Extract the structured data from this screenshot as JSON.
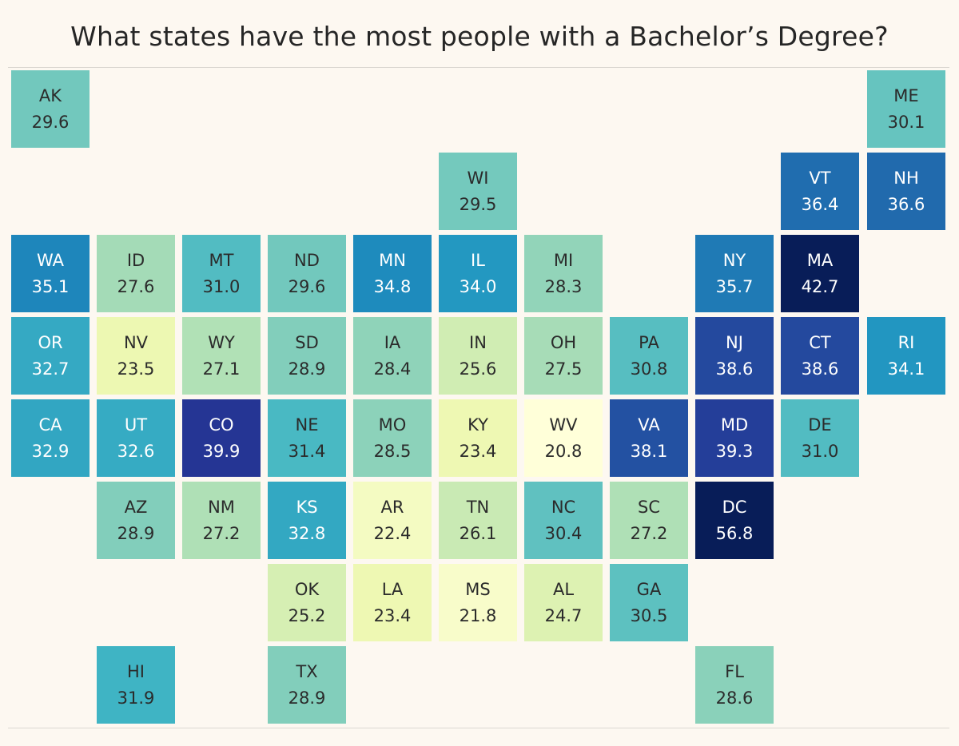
{
  "chart_data": {
    "type": "heatmap",
    "title": "What states have the most people with a Bachelor’s Degree?",
    "color_scale": [
      "#ffffd9",
      "#edf8b1",
      "#c7e9b4",
      "#7fcdbb",
      "#41b6c4",
      "#1d91c0",
      "#225ea8",
      "#253494",
      "#081d58"
    ],
    "value_range": [
      20.8,
      56.8
    ],
    "tiles": [
      {
        "state": "AK",
        "value": "29.6",
        "row": 0,
        "col": 0
      },
      {
        "state": "ME",
        "value": "30.1",
        "row": 0,
        "col": 10
      },
      {
        "state": "WI",
        "value": "29.5",
        "row": 1,
        "col": 5
      },
      {
        "state": "VT",
        "value": "36.4",
        "row": 1,
        "col": 9
      },
      {
        "state": "NH",
        "value": "36.6",
        "row": 1,
        "col": 10
      },
      {
        "state": "WA",
        "value": "35.1",
        "row": 2,
        "col": 0
      },
      {
        "state": "ID",
        "value": "27.6",
        "row": 2,
        "col": 1
      },
      {
        "state": "MT",
        "value": "31.0",
        "row": 2,
        "col": 2
      },
      {
        "state": "ND",
        "value": "29.6",
        "row": 2,
        "col": 3
      },
      {
        "state": "MN",
        "value": "34.8",
        "row": 2,
        "col": 4
      },
      {
        "state": "IL",
        "value": "34.0",
        "row": 2,
        "col": 5
      },
      {
        "state": "MI",
        "value": "28.3",
        "row": 2,
        "col": 6
      },
      {
        "state": "NY",
        "value": "35.7",
        "row": 2,
        "col": 8
      },
      {
        "state": "MA",
        "value": "42.7",
        "row": 2,
        "col": 9
      },
      {
        "state": "OR",
        "value": "32.7",
        "row": 3,
        "col": 0
      },
      {
        "state": "NV",
        "value": "23.5",
        "row": 3,
        "col": 1
      },
      {
        "state": "WY",
        "value": "27.1",
        "row": 3,
        "col": 2
      },
      {
        "state": "SD",
        "value": "28.9",
        "row": 3,
        "col": 3
      },
      {
        "state": "IA",
        "value": "28.4",
        "row": 3,
        "col": 4
      },
      {
        "state": "IN",
        "value": "25.6",
        "row": 3,
        "col": 5
      },
      {
        "state": "OH",
        "value": "27.5",
        "row": 3,
        "col": 6
      },
      {
        "state": "PA",
        "value": "30.8",
        "row": 3,
        "col": 7
      },
      {
        "state": "NJ",
        "value": "38.6",
        "row": 3,
        "col": 8
      },
      {
        "state": "CT",
        "value": "38.6",
        "row": 3,
        "col": 9
      },
      {
        "state": "RI",
        "value": "34.1",
        "row": 3,
        "col": 10
      },
      {
        "state": "CA",
        "value": "32.9",
        "row": 4,
        "col": 0
      },
      {
        "state": "UT",
        "value": "32.6",
        "row": 4,
        "col": 1
      },
      {
        "state": "CO",
        "value": "39.9",
        "row": 4,
        "col": 2
      },
      {
        "state": "NE",
        "value": "31.4",
        "row": 4,
        "col": 3
      },
      {
        "state": "MO",
        "value": "28.5",
        "row": 4,
        "col": 4
      },
      {
        "state": "KY",
        "value": "23.4",
        "row": 4,
        "col": 5
      },
      {
        "state": "WV",
        "value": "20.8",
        "row": 4,
        "col": 6
      },
      {
        "state": "VA",
        "value": "38.1",
        "row": 4,
        "col": 7
      },
      {
        "state": "MD",
        "value": "39.3",
        "row": 4,
        "col": 8
      },
      {
        "state": "DE",
        "value": "31.0",
        "row": 4,
        "col": 9
      },
      {
        "state": "AZ",
        "value": "28.9",
        "row": 5,
        "col": 1
      },
      {
        "state": "NM",
        "value": "27.2",
        "row": 5,
        "col": 2
      },
      {
        "state": "KS",
        "value": "32.8",
        "row": 5,
        "col": 3
      },
      {
        "state": "AR",
        "value": "22.4",
        "row": 5,
        "col": 4
      },
      {
        "state": "TN",
        "value": "26.1",
        "row": 5,
        "col": 5
      },
      {
        "state": "NC",
        "value": "30.4",
        "row": 5,
        "col": 6
      },
      {
        "state": "SC",
        "value": "27.2",
        "row": 5,
        "col": 7
      },
      {
        "state": "DC",
        "value": "56.8",
        "row": 5,
        "col": 8
      },
      {
        "state": "OK",
        "value": "25.2",
        "row": 6,
        "col": 3
      },
      {
        "state": "LA",
        "value": "23.4",
        "row": 6,
        "col": 4
      },
      {
        "state": "MS",
        "value": "21.8",
        "row": 6,
        "col": 5
      },
      {
        "state": "AL",
        "value": "24.7",
        "row": 6,
        "col": 6
      },
      {
        "state": "GA",
        "value": "30.5",
        "row": 6,
        "col": 7
      },
      {
        "state": "HI",
        "value": "31.9",
        "row": 7,
        "col": 1
      },
      {
        "state": "TX",
        "value": "28.9",
        "row": 7,
        "col": 3
      },
      {
        "state": "FL",
        "value": "28.6",
        "row": 7,
        "col": 8
      }
    ]
  }
}
